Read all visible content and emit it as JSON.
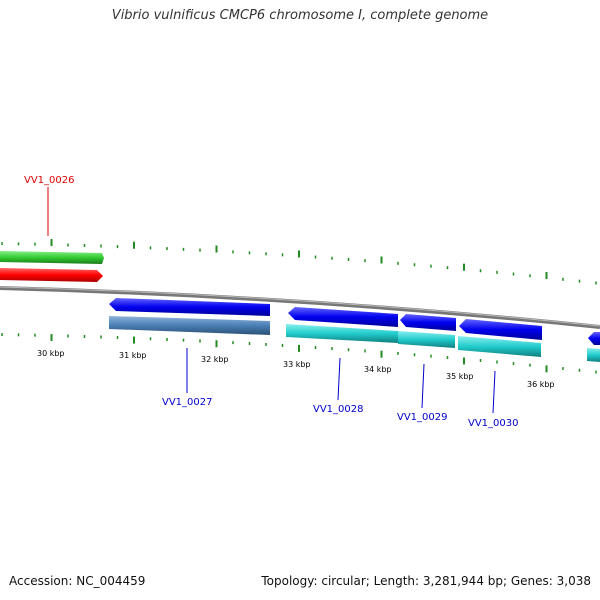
{
  "header": {
    "title": "Vibrio vulnificus CMCP6 chromosome I, complete genome"
  },
  "footer": {
    "accession": "Accession: NC_004459",
    "summary": "Topology: circular; Length: 3,281,944 bp; Genes: 3,038"
  },
  "map": {
    "ticks": [
      "30 kbp",
      "31 kbp",
      "32 kbp",
      "33 kbp",
      "34 kbp",
      "35 kbp",
      "36 kbp"
    ],
    "genes": {
      "forward": [
        {
          "name": "VV1_0026",
          "color": "#dd0000"
        }
      ],
      "reverse": [
        {
          "name": "VV1_0027",
          "color": "#0000cc"
        },
        {
          "name": "VV1_0028",
          "color": "#0000cc"
        },
        {
          "name": "VV1_0029",
          "color": "#0000cc"
        },
        {
          "name": "VV1_0030",
          "color": "#0000cc"
        }
      ]
    },
    "colors": {
      "forward_gene": "#ff0000",
      "forward_cds": "#33cc33",
      "reverse_gene": "#0000ee",
      "reverse_cds": "#22cccc",
      "reverse_cds_alt": "#4a7fb5",
      "backbone": "#888888",
      "tick": "#228b22"
    }
  }
}
